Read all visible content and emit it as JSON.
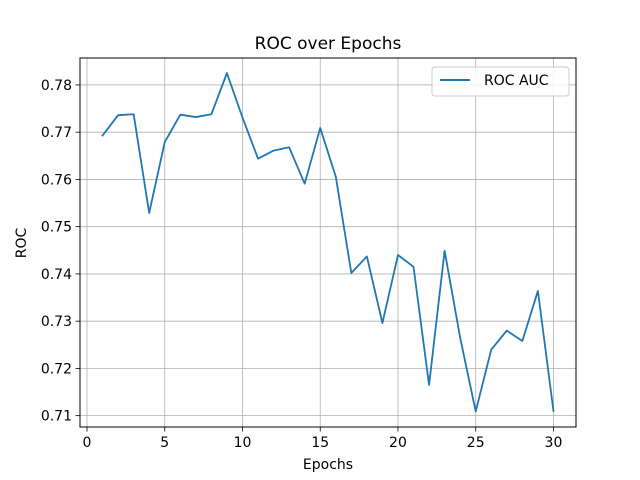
{
  "chart_data": {
    "type": "line",
    "title": "ROC over Epochs",
    "xlabel": "Epochs",
    "ylabel": "ROC",
    "xlim": [
      -0.45,
      31.45
    ],
    "ylim": [
      0.7076,
      0.7857
    ],
    "xticks": [
      0,
      5,
      10,
      15,
      20,
      25,
      30
    ],
    "xtick_labels": [
      "0",
      "5",
      "10",
      "15",
      "20",
      "25",
      "30"
    ],
    "yticks": [
      0.71,
      0.72,
      0.73,
      0.74,
      0.75,
      0.76,
      0.77,
      0.78
    ],
    "ytick_labels": [
      "0.71",
      "0.72",
      "0.73",
      "0.74",
      "0.75",
      "0.76",
      "0.77",
      "0.78"
    ],
    "grid": true,
    "legend_position": "top-right",
    "series": [
      {
        "name": "ROC AUC",
        "color": "#1f77b4",
        "x": [
          1,
          2,
          3,
          4,
          5,
          6,
          7,
          8,
          9,
          10,
          11,
          12,
          13,
          14,
          15,
          16,
          17,
          18,
          19,
          20,
          21,
          22,
          23,
          24,
          25,
          26,
          27,
          28,
          29,
          30
        ],
        "values": [
          0.7693,
          0.7736,
          0.7738,
          0.7529,
          0.7679,
          0.7737,
          0.7732,
          0.7738,
          0.7825,
          0.7731,
          0.7644,
          0.7661,
          0.7668,
          0.7591,
          0.7709,
          0.7606,
          0.7402,
          0.7437,
          0.7296,
          0.744,
          0.7415,
          0.7165,
          0.7449,
          0.7265,
          0.7109,
          0.724,
          0.728,
          0.7258,
          0.7364,
          0.711
        ]
      }
    ]
  }
}
